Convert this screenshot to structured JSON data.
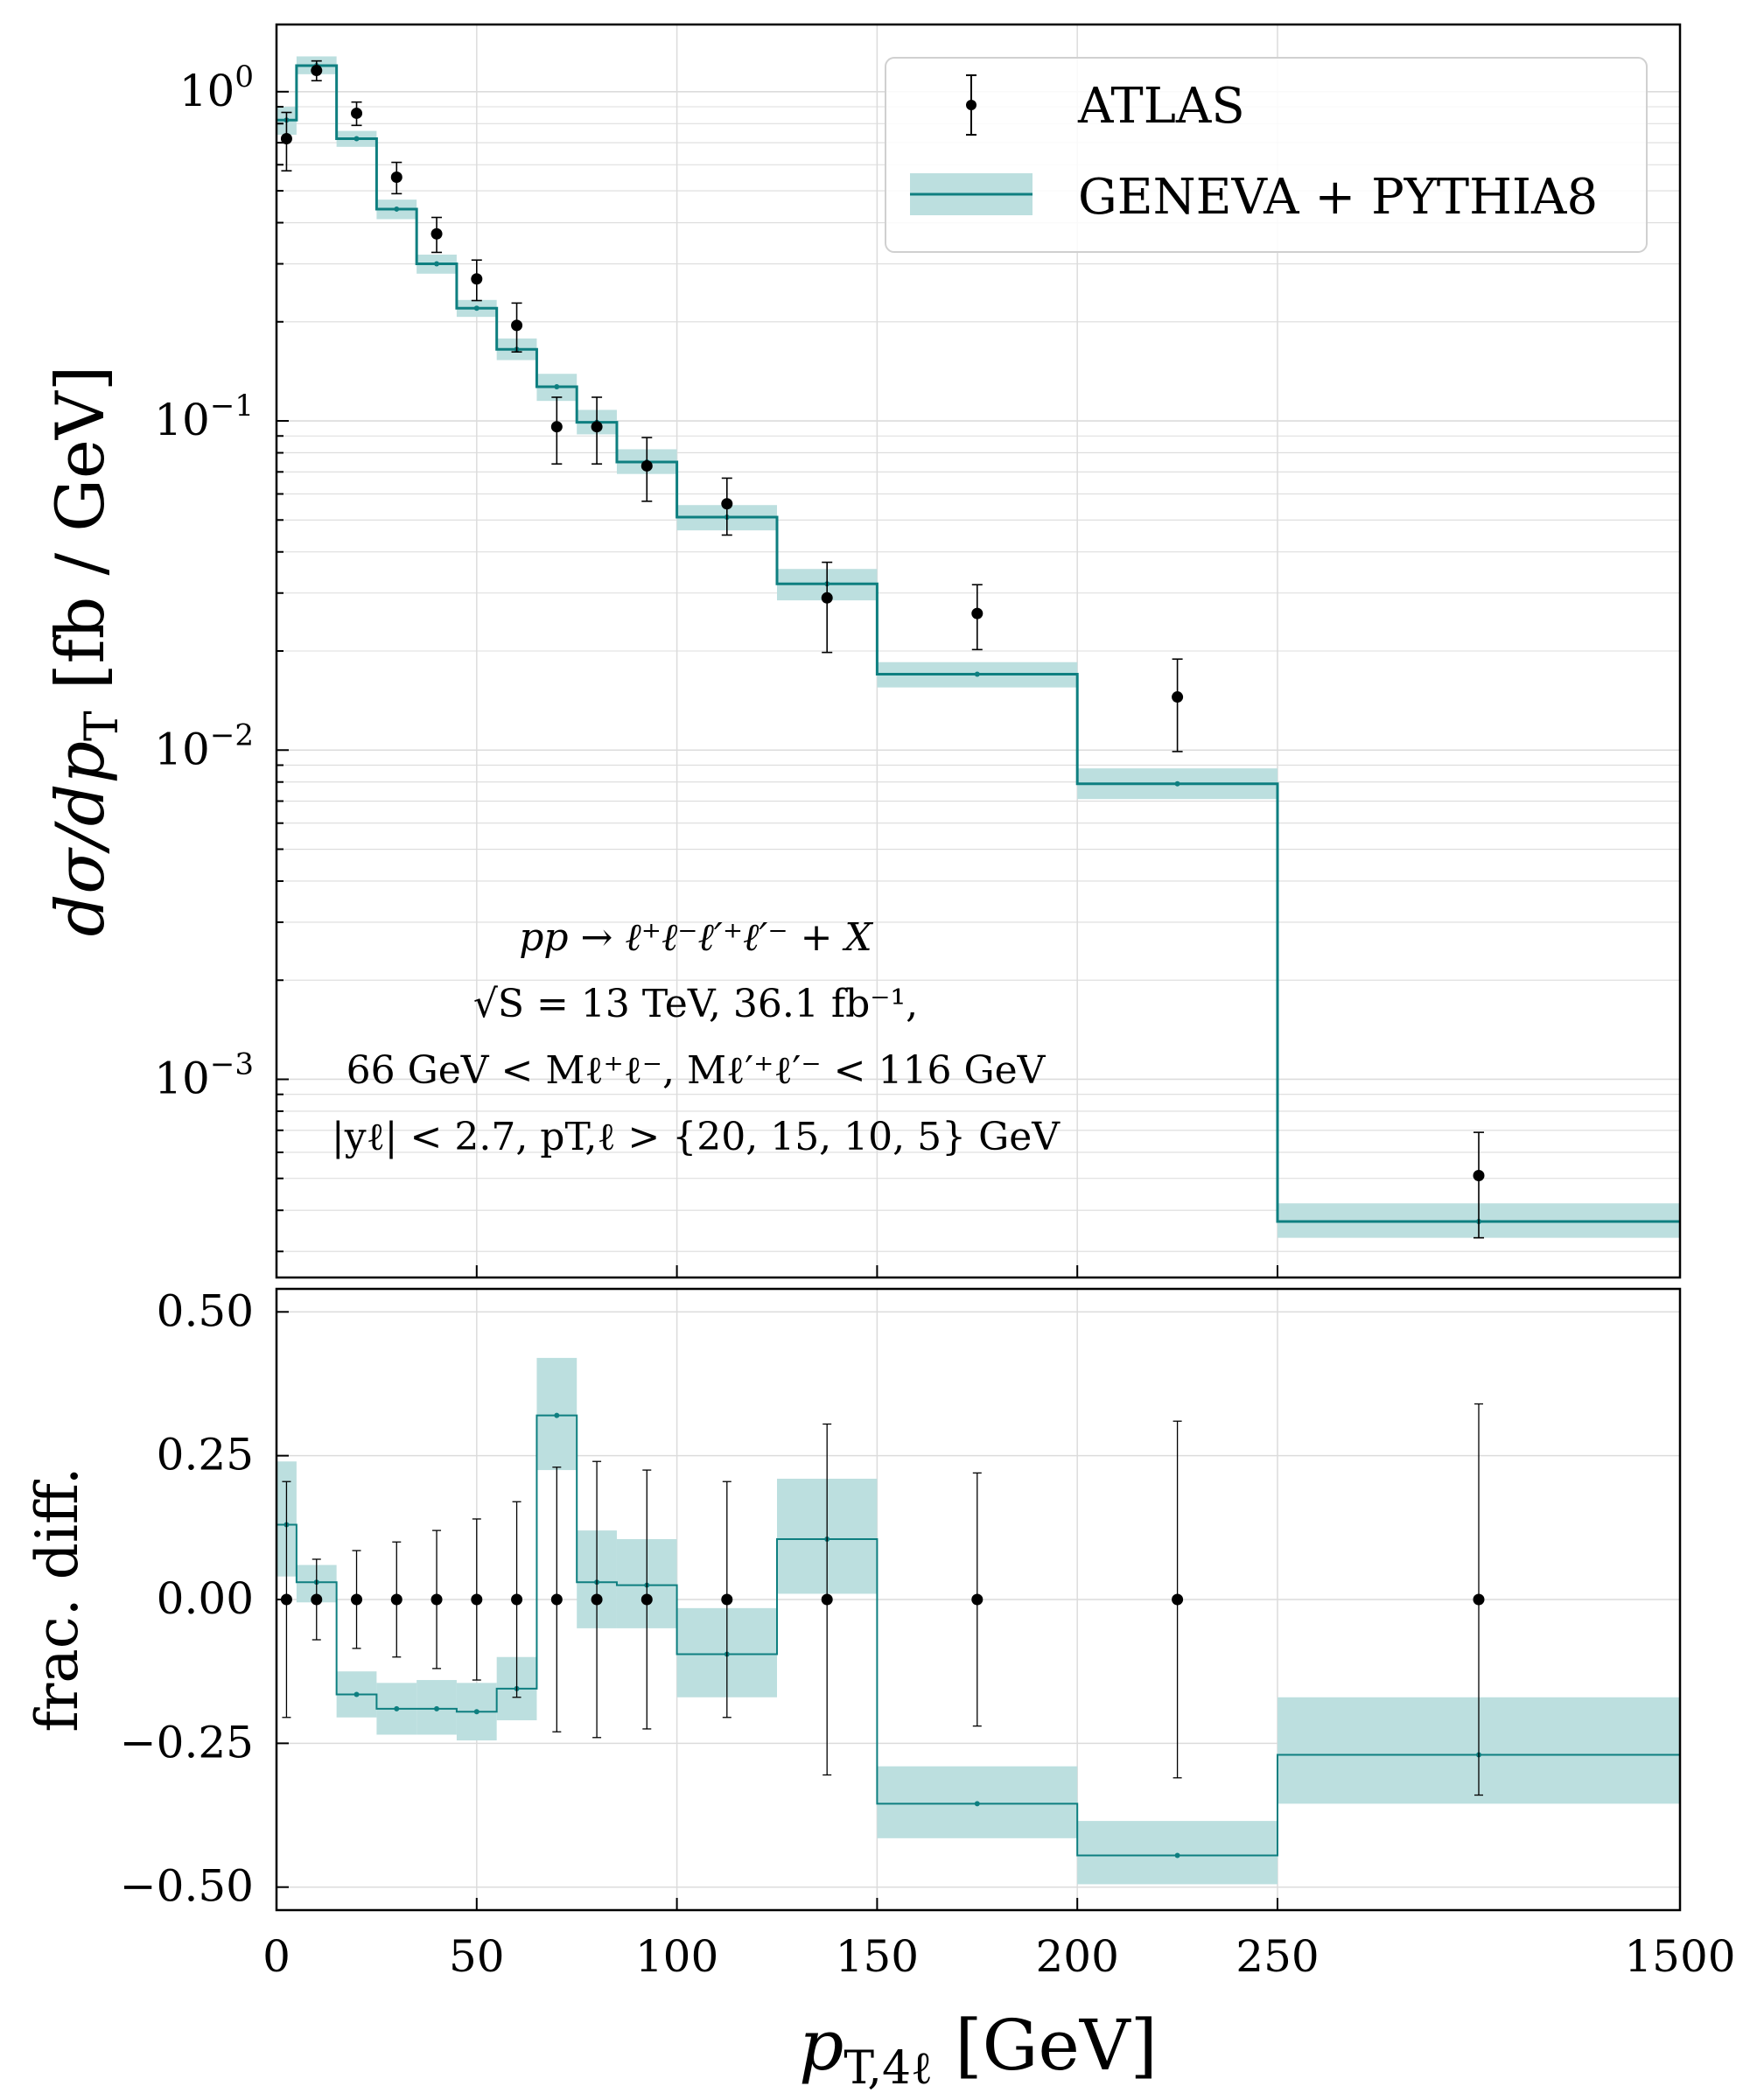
{
  "chart_data": [
    {
      "panel": "main",
      "type": "line",
      "scale_y": "log",
      "ylim": [
        0.00025,
        1.6
      ],
      "ylabel": "dσ/dp_T [fb / GeV]",
      "ylabel_parts": {
        "a": "dσ/dp",
        "sub": "T",
        "b": " [fb / GeV]"
      },
      "ytick_labels": [
        {
          "value": 1,
          "base": "10",
          "exp": "0"
        },
        {
          "value": 0.1,
          "base": "10",
          "exp": "−1"
        },
        {
          "value": 0.01,
          "base": "10",
          "exp": "−2"
        },
        {
          "value": 0.001,
          "base": "10",
          "exp": "−3"
        }
      ],
      "legend": {
        "position": "top-right",
        "data_label": "ATLAS",
        "model_label": "GENEVA + PYTHIA8"
      },
      "annotations": [
        "pp → ℓ⁺ℓ⁻ℓ′⁺ℓ′⁻ + X",
        "√S = 13 TeV, 36.1 fb⁻¹,",
        "66 GeV < Mℓ⁺ℓ⁻, Mℓ′⁺ℓ′⁻ < 116 GeV",
        "|yℓ| < 2.7, pT,ℓ > {20, 15, 10, 5} GeV"
      ],
      "series": [
        {
          "name": "ATLAS",
          "kind": "points",
          "color": "#000000",
          "x": [
            2.5,
            10,
            20,
            30,
            40,
            50,
            60,
            70,
            80,
            92.5,
            112.5,
            137.5,
            175,
            225,
            875
          ],
          "y": [
            0.72,
            1.16,
            0.86,
            0.55,
            0.37,
            0.27,
            0.195,
            0.096,
            0.096,
            0.073,
            0.056,
            0.029,
            0.026,
            0.0145,
            0.00051
          ],
          "yerr_lo": [
            0.145,
            0.08,
            0.07,
            0.06,
            0.045,
            0.038,
            0.033,
            0.022,
            0.022,
            0.016,
            0.011,
            0.0092,
            0.0058,
            0.0046,
            0.00018
          ],
          "yerr_hi": [
            0.145,
            0.08,
            0.07,
            0.06,
            0.045,
            0.038,
            0.033,
            0.022,
            0.022,
            0.016,
            0.011,
            0.0082,
            0.0058,
            0.0044,
            0.00018
          ]
        },
        {
          "name": "GENEVA + PYTHIA8",
          "kind": "step",
          "color": "#0e7f80",
          "band_color": "#bcdfdf",
          "bin_edges": [
            0,
            5,
            15,
            25,
            35,
            45,
            55,
            65,
            75,
            85,
            100,
            125,
            150,
            200,
            250,
            1500
          ],
          "values": [
            0.82,
            1.2,
            0.72,
            0.44,
            0.3,
            0.22,
            0.165,
            0.127,
            0.099,
            0.075,
            0.051,
            0.032,
            0.017,
            0.0079,
            0.00037
          ],
          "band_lo": [
            0.74,
            1.13,
            0.68,
            0.41,
            0.28,
            0.207,
            0.153,
            0.115,
            0.091,
            0.069,
            0.0465,
            0.0285,
            0.0155,
            0.0071,
            0.00033
          ],
          "band_hi": [
            0.9,
            1.28,
            0.76,
            0.47,
            0.32,
            0.233,
            0.178,
            0.139,
            0.108,
            0.082,
            0.0555,
            0.0355,
            0.0185,
            0.0088,
            0.00042
          ]
        }
      ]
    },
    {
      "panel": "ratio",
      "type": "line",
      "ylim": [
        -0.54,
        0.54
      ],
      "ylabel": "frac. diff.",
      "yticks": [
        -0.5,
        -0.25,
        0.0,
        0.25,
        0.5
      ],
      "ytick_labels": [
        "−0.50",
        "−0.25",
        "0.00",
        "0.25",
        "0.50"
      ],
      "series": [
        {
          "name": "ATLAS",
          "kind": "points",
          "color": "#000000",
          "x": [
            2.5,
            10,
            20,
            30,
            40,
            50,
            60,
            70,
            80,
            92.5,
            112.5,
            137.5,
            175,
            225,
            875
          ],
          "y": [
            0,
            0,
            0,
            0,
            0,
            0,
            0,
            0,
            0,
            0,
            0,
            0,
            0,
            0,
            0
          ],
          "yerr": [
            0.205,
            0.07,
            0.085,
            0.1,
            0.12,
            0.14,
            0.17,
            0.23,
            0.24,
            0.225,
            0.205,
            0.305,
            0.22,
            0.31,
            0.34
          ]
        },
        {
          "name": "GENEVA + PYTHIA8",
          "kind": "step",
          "color": "#0e7f80",
          "band_color": "#bcdfdf",
          "bin_edges": [
            0,
            5,
            15,
            25,
            35,
            45,
            55,
            65,
            75,
            85,
            100,
            125,
            150,
            200,
            250,
            1500
          ],
          "values": [
            0.13,
            0.03,
            -0.165,
            -0.19,
            -0.19,
            -0.195,
            -0.155,
            0.32,
            0.03,
            0.025,
            -0.095,
            0.105,
            -0.355,
            -0.445,
            -0.27
          ],
          "band_lo": [
            0.04,
            -0.005,
            -0.205,
            -0.235,
            -0.235,
            -0.245,
            -0.21,
            0.225,
            -0.05,
            -0.05,
            -0.17,
            0.01,
            -0.415,
            -0.495,
            -0.355
          ],
          "band_hi": [
            0.24,
            0.06,
            -0.125,
            -0.145,
            -0.14,
            -0.145,
            -0.1,
            0.42,
            0.12,
            0.105,
            -0.015,
            0.21,
            -0.29,
            -0.385,
            -0.17
          ]
        }
      ]
    }
  ],
  "x_axis": {
    "label": "p_T,4ℓ [GeV]",
    "label_parts": {
      "a": "p",
      "sub": "T,4ℓ",
      "b": " [GeV]"
    },
    "tick_values": [
      0,
      50,
      100,
      150,
      200,
      250,
      1500
    ],
    "tick_labels": [
      "0",
      "50",
      "100",
      "150",
      "200",
      "250",
      "1500"
    ],
    "scale": "piecewise linear: 0–250 linear, 250–1500 compressed into one segment"
  }
}
